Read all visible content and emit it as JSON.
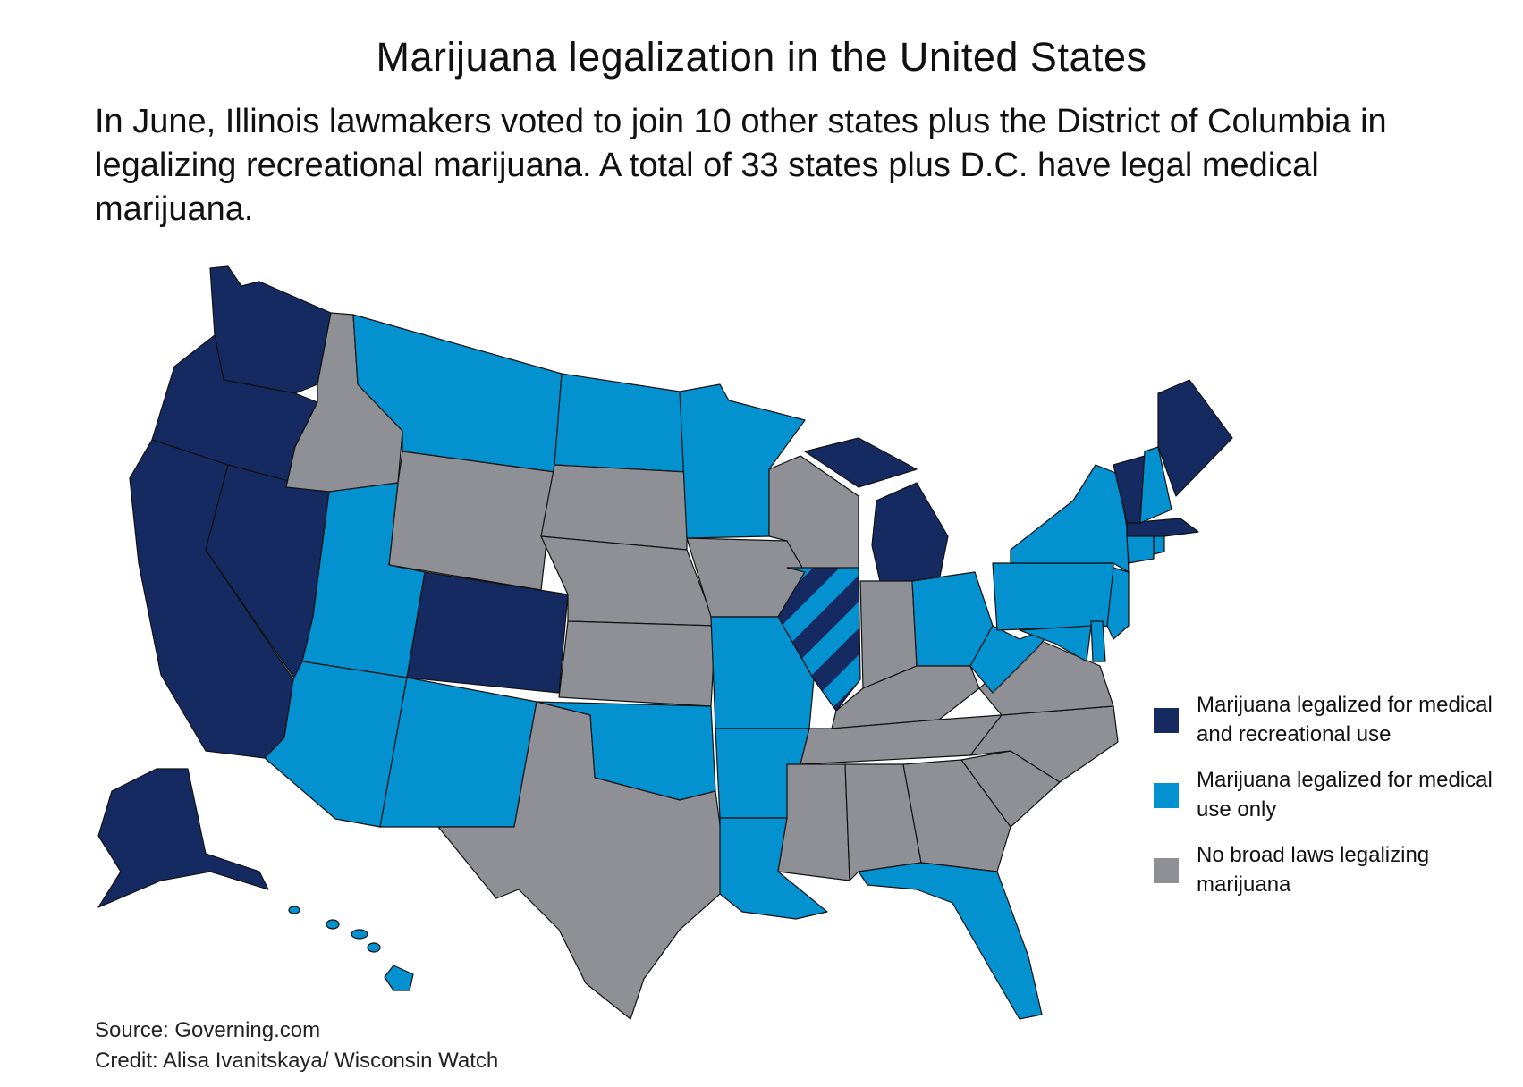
{
  "title": "Marijuana legalization in the United States",
  "subtitle": "In June, Illinois lawmakers voted to join 10 other states plus the District of Columbia in legalizing recreational marijuana. A total of 33 states plus D.C. have legal medical marijuana.",
  "colors": {
    "recreational": "#162a62",
    "medical": "#0491cf",
    "none": "#8f9095",
    "border": "#111111"
  },
  "legend": {
    "items": [
      {
        "key": "recreational",
        "label": "Marijuana legalized for medical and recreational use"
      },
      {
        "key": "medical",
        "label": "Marijuana legalized for medical use only"
      },
      {
        "key": "none",
        "label": "No broad laws legalizing marijuana"
      }
    ]
  },
  "states": {
    "WA": "recreational",
    "OR": "recreational",
    "CA": "recreational",
    "NV": "recreational",
    "AK": "recreational",
    "CO": "recreational",
    "MI": "recreational",
    "ME": "recreational",
    "VT": "recreational",
    "MA": "recreational",
    "IL": "recreational-striped",
    "MT": "medical",
    "ND": "medical",
    "MN": "medical",
    "UT": "medical",
    "AZ": "medical",
    "NM": "medical",
    "OK": "medical",
    "AR": "medical",
    "MO": "medical",
    "LA": "medical",
    "FL": "medical",
    "OH": "medical",
    "WV": "medical",
    "PA": "medical",
    "NY": "medical",
    "NH": "medical",
    "NJ": "medical",
    "MD": "medical",
    "DE": "medical",
    "CT": "medical",
    "RI": "medical",
    "HI": "medical",
    "ID": "none",
    "WY": "none",
    "SD": "none",
    "NE": "none",
    "KS": "none",
    "TX": "none",
    "IA": "none",
    "WI": "none",
    "IN": "none",
    "KY": "none",
    "TN": "none",
    "MS": "none",
    "AL": "none",
    "GA": "none",
    "SC": "none",
    "NC": "none",
    "VA": "none"
  },
  "footer": {
    "source": "Source: Governing.com",
    "credit": "Credit: Alisa Ivanitskaya/ Wisconsin Watch"
  }
}
